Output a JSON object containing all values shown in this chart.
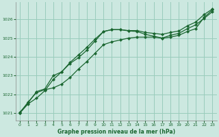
{
  "title": "Graphe pression niveau de la mer (hPa)",
  "background_color": "#cce8e0",
  "grid_color": "#99ccbb",
  "line_color": "#1a6630",
  "text_color": "#1a6630",
  "xlim": [
    -0.5,
    23.5
  ],
  "ylim": [
    1020.6,
    1026.9
  ],
  "yticks": [
    1021,
    1022,
    1023,
    1024,
    1025,
    1026
  ],
  "xticks": [
    0,
    1,
    2,
    3,
    4,
    5,
    6,
    7,
    8,
    9,
    10,
    11,
    12,
    13,
    14,
    15,
    16,
    17,
    18,
    19,
    20,
    21,
    22,
    23
  ],
  "series1_x": [
    0,
    1,
    2,
    3,
    4,
    5,
    6,
    7,
    8,
    9,
    10,
    11,
    12,
    13,
    14,
    15,
    16,
    17,
    18,
    19,
    20,
    21,
    22,
    23
  ],
  "series1_y": [
    1021.0,
    1021.5,
    1021.8,
    1022.2,
    1022.8,
    1023.2,
    1023.7,
    1024.1,
    1024.5,
    1024.95,
    1025.35,
    1025.45,
    1025.45,
    1025.4,
    1025.4,
    1025.3,
    1025.25,
    1025.2,
    1025.3,
    1025.38,
    1025.65,
    1025.85,
    1026.25,
    1026.55
  ],
  "series2_x": [
    0,
    1,
    2,
    3,
    4,
    5,
    6,
    7,
    8,
    9,
    10,
    11,
    12,
    13,
    14,
    15,
    16,
    17,
    18,
    19,
    20,
    21,
    22,
    23
  ],
  "series2_y": [
    1021.0,
    1021.6,
    1022.1,
    1022.25,
    1022.35,
    1022.55,
    1022.9,
    1023.35,
    1023.75,
    1024.2,
    1024.65,
    1024.8,
    1024.9,
    1025.0,
    1025.05,
    1025.05,
    1025.05,
    1025.0,
    1025.05,
    1025.15,
    1025.35,
    1025.5,
    1026.1,
    1026.5
  ],
  "series3_x": [
    0,
    1,
    2,
    3,
    4,
    5,
    6,
    7,
    8,
    9,
    10,
    11,
    12,
    13,
    14,
    15,
    16,
    17,
    18,
    19,
    20,
    21,
    22,
    23
  ],
  "series3_y": [
    1021.05,
    1021.55,
    1022.15,
    1022.3,
    1023.0,
    1023.2,
    1023.65,
    1023.95,
    1024.35,
    1024.85,
    1025.35,
    1025.45,
    1025.45,
    1025.38,
    1025.35,
    1025.2,
    1025.1,
    1025.0,
    1025.15,
    1025.25,
    1025.5,
    1025.7,
    1026.05,
    1026.4
  ]
}
